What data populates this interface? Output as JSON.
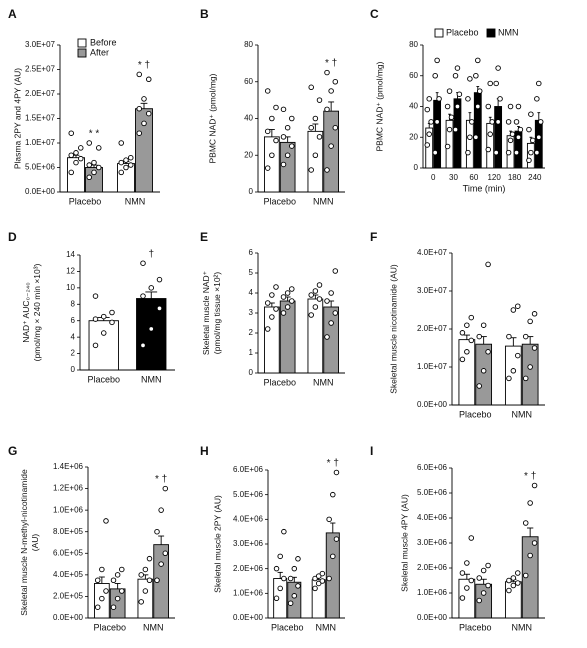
{
  "chart_data": [
    {
      "type": "bar",
      "panel": "A",
      "ylabel": [
        "Plasma 2PY and 4PY (AU)"
      ],
      "categories": [
        "Placebo",
        "NMN"
      ],
      "legend": "top-left",
      "ylim": [
        0,
        30000000
      ],
      "yticks": [
        {
          "value": 0,
          "label": "0.0E+00"
        },
        {
          "value": 5000000,
          "label": "5.0E+06"
        },
        {
          "value": 10000000,
          "label": "1.0E+07"
        },
        {
          "value": 15000000,
          "label": "1.5E+07"
        },
        {
          "value": 20000000,
          "label": "2.0E+07"
        },
        {
          "value": 25000000,
          "label": "2.5E+07"
        },
        {
          "value": 30000000,
          "label": "3.0E+07"
        }
      ],
      "series": [
        {
          "name": "Before",
          "color": "#ffffff",
          "values": [
            7000000,
            5800000
          ],
          "errors": [
            500000,
            400000
          ],
          "points": [
            [
              4000000,
              6000000,
              6800000,
              7500000,
              8000000,
              9000000,
              12000000
            ],
            [
              4000000,
              5000000,
              5500000,
              6000000,
              6500000,
              7000000,
              10000000
            ]
          ]
        },
        {
          "name": "After",
          "color": "#999999",
          "values": [
            5000000,
            17000000
          ],
          "errors": [
            500000,
            1100000
          ],
          "points": [
            [
              3000000,
              4000000,
              5000000,
              5500000,
              6000000,
              9000000,
              10000000
            ],
            [
              12000000,
              14000000,
              16000000,
              17000000,
              19000000,
              23000000,
              24000000
            ]
          ],
          "annotations": [
            "* *",
            "* †"
          ]
        }
      ]
    },
    {
      "type": "bar",
      "panel": "B",
      "ylabel": [
        "PBMC NAD⁺ (pmol/mg)"
      ],
      "categories": [
        "Placebo",
        "NMN"
      ],
      "ylim": [
        0,
        80
      ],
      "yticks": [
        0,
        20,
        40,
        60,
        80
      ],
      "series": [
        {
          "name": "Before",
          "color": "#ffffff",
          "values": [
            30,
            33
          ],
          "errors": [
            4,
            4
          ],
          "points": [
            [
              13,
              20,
              28,
              33,
              40,
              46,
              55
            ],
            [
              12,
              20,
              30,
              35,
              40,
              50,
              57
            ]
          ]
        },
        {
          "name": "After",
          "color": "#999999",
          "values": [
            27,
            44
          ],
          "errors": [
            3,
            5
          ],
          "points": [
            [
              15,
              20,
              25,
              30,
              35,
              40,
              45
            ],
            [
              12,
              25,
              35,
              45,
              55,
              60,
              65
            ]
          ],
          "annotations": [
            null,
            "* †"
          ]
        }
      ]
    },
    {
      "type": "bar",
      "panel": "C",
      "ylabel": [
        "PBMC NAD⁺ (pmol/mg)"
      ],
      "xlabel": "Time (min)",
      "categories": [
        "0",
        "30",
        "60",
        "120",
        "180",
        "240"
      ],
      "legend": "top",
      "ylim": [
        0,
        80
      ],
      "yticks": [
        0,
        20,
        40,
        60,
        80
      ],
      "series": [
        {
          "name": "Placebo",
          "color": "#ffffff",
          "values": [
            26,
            31,
            31,
            29,
            21,
            16
          ],
          "errors": [
            3,
            4,
            5,
            4,
            3,
            4
          ],
          "points": [
            [
              15,
              22,
              30,
              38,
              45
            ],
            [
              14,
              25,
              33,
              40,
              50
            ],
            [
              10,
              20,
              30,
              45,
              58
            ],
            [
              12,
              22,
              30,
              40,
              55
            ],
            [
              10,
              18,
              22,
              30,
              40
            ],
            [
              5,
              10,
              18,
              25,
              35
            ]
          ]
        },
        {
          "name": "NMN",
          "color": "#000000",
          "values": [
            44,
            45,
            49,
            40,
            24,
            31
          ],
          "errors": [
            5,
            4,
            4,
            5,
            3,
            5
          ],
          "points": [
            [
              10,
              30,
              45,
              60,
              70
            ],
            [
              25,
              40,
              48,
              60,
              65
            ],
            [
              20,
              40,
              50,
              60,
              70
            ],
            [
              10,
              30,
              45,
              55,
              65
            ],
            [
              10,
              20,
              25,
              30,
              40
            ],
            [
              10,
              20,
              30,
              45,
              55
            ]
          ]
        }
      ]
    },
    {
      "type": "bar",
      "panel": "D",
      "ylabel": [
        "NAD⁺ AUC₀₋₂₄₀",
        "(pmol/mg × 240 min ×10³)"
      ],
      "categories": [
        "Placebo",
        "NMN"
      ],
      "ylim": [
        0,
        14
      ],
      "yticks": [
        0,
        2,
        4,
        6,
        8,
        10,
        12,
        14
      ],
      "series": [
        {
          "colors": [
            "#ffffff",
            "#000000"
          ],
          "values": [
            6.0,
            8.7
          ],
          "errors": [
            0.4,
            0.8
          ],
          "points": [
            [
              3,
              4.5,
              5.8,
              6.2,
              6.5,
              7,
              9
            ],
            [
              3,
              5,
              7.5,
              9,
              10,
              11,
              13
            ]
          ],
          "annotations": [
            null,
            "†"
          ]
        }
      ]
    },
    {
      "type": "bar",
      "panel": "E",
      "ylabel": [
        "Skeletal muscle NAD⁺",
        "(pmol/mg tissue ×10²)"
      ],
      "categories": [
        "Placebo",
        "NMN"
      ],
      "ylim": [
        0,
        6
      ],
      "yticks": [
        0,
        1,
        2,
        3,
        4,
        5,
        6
      ],
      "series": [
        {
          "name": "Before",
          "color": "#ffffff",
          "values": [
            3.3,
            3.7
          ],
          "errors": [
            0.2,
            0.2
          ],
          "points": [
            [
              2.2,
              2.8,
              3.2,
              3.5,
              3.9,
              4.3
            ],
            [
              2.9,
              3.3,
              3.7,
              3.9,
              4.1,
              4.4
            ]
          ]
        },
        {
          "name": "After",
          "color": "#999999",
          "values": [
            3.6,
            3.3
          ],
          "errors": [
            0.2,
            0.3
          ],
          "points": [
            [
              3.0,
              3.3,
              3.6,
              3.8,
              4.0,
              4.2
            ],
            [
              1.8,
              2.5,
              3.0,
              3.6,
              4.0,
              5.1
            ]
          ]
        }
      ]
    },
    {
      "type": "bar",
      "panel": "F",
      "ylabel": [
        "Skeletal muscle nicotinamide (AU)"
      ],
      "categories": [
        "Placebo",
        "NMN"
      ],
      "ylim": [
        0,
        40000000
      ],
      "yticks": [
        {
          "value": 0,
          "label": "0.0E+00"
        },
        {
          "value": 10000000,
          "label": "1.0E+07"
        },
        {
          "value": 20000000,
          "label": "2.0E+07"
        },
        {
          "value": 30000000,
          "label": "3.0E+07"
        },
        {
          "value": 40000000,
          "label": "4.0E+07"
        }
      ],
      "series": [
        {
          "name": "Before",
          "color": "#ffffff",
          "values": [
            17200000,
            15500000
          ],
          "errors": [
            1200000,
            2200000
          ],
          "points": [
            [
              12000000,
              14000000,
              17000000,
              19000000,
              21000000,
              23000000
            ],
            [
              7000000,
              9000000,
              13000000,
              18000000,
              25000000,
              26000000
            ]
          ]
        },
        {
          "name": "After",
          "color": "#999999",
          "values": [
            16000000,
            16000000
          ],
          "errors": [
            2000000,
            2000000
          ],
          "points": [
            [
              5000000,
              9000000,
              14000000,
              18000000,
              21000000,
              37000000
            ],
            [
              7000000,
              10000000,
              15000000,
              18000000,
              22000000,
              24000000
            ]
          ]
        }
      ]
    },
    {
      "type": "bar",
      "panel": "G",
      "ylabel": [
        "Skeletal muscle N-methyl-nicotinamide",
        "(AU)"
      ],
      "categories": [
        "Placebo",
        "NMN"
      ],
      "ylim": [
        0,
        1400000
      ],
      "yticks": [
        {
          "value": 0,
          "label": "0.0E+00"
        },
        {
          "value": 200000,
          "label": "2.0E+05"
        },
        {
          "value": 400000,
          "label": "4.0E+05"
        },
        {
          "value": 600000,
          "label": "6.0E+05"
        },
        {
          "value": 800000,
          "label": "8.0E+05"
        },
        {
          "value": 1000000,
          "label": "1.0E+06"
        },
        {
          "value": 1200000,
          "label": "1.2E+06"
        },
        {
          "value": 1400000,
          "label": "1.4E+06"
        }
      ],
      "series": [
        {
          "name": "Before",
          "color": "#ffffff",
          "values": [
            320000,
            360000
          ],
          "errors": [
            60000,
            40000
          ],
          "points": [
            [
              100000,
              180000,
              250000,
              350000,
              450000,
              900000
            ],
            [
              150000,
              250000,
              350000,
              400000,
              450000,
              550000
            ]
          ]
        },
        {
          "name": "After",
          "color": "#999999",
          "values": [
            270000,
            680000
          ],
          "errors": [
            50000,
            80000
          ],
          "points": [
            [
              100000,
              180000,
              250000,
              350000,
              400000,
              450000
            ],
            [
              350000,
              500000,
              600000,
              800000,
              1000000,
              1200000
            ]
          ],
          "annotations": [
            null,
            "* †"
          ]
        }
      ]
    },
    {
      "type": "bar",
      "panel": "H",
      "ylabel": [
        "Skeletal muscle 2PY (AU)"
      ],
      "categories": [
        "Placebo",
        "NMN"
      ],
      "ylim": [
        0,
        6000000
      ],
      "yticks": [
        {
          "value": 0,
          "label": "0.0E+00"
        },
        {
          "value": 1000000,
          "label": "1.0E+06"
        },
        {
          "value": 2000000,
          "label": "2.0E+06"
        },
        {
          "value": 3000000,
          "label": "3.0E+06"
        },
        {
          "value": 4000000,
          "label": "4.0E+06"
        },
        {
          "value": 5000000,
          "label": "5.0E+06"
        },
        {
          "value": 6000000,
          "label": "6.0E+06"
        }
      ],
      "series": [
        {
          "name": "Before",
          "color": "#ffffff",
          "values": [
            1600000,
            1550000
          ],
          "errors": [
            250000,
            100000
          ],
          "points": [
            [
              800000,
              1200000,
              1600000,
              2000000,
              2500000,
              3500000
            ],
            [
              1200000,
              1400000,
              1500000,
              1600000,
              1700000,
              1800000
            ]
          ]
        },
        {
          "name": "After",
          "color": "#999999",
          "values": [
            1450000,
            3450000
          ],
          "errors": [
            200000,
            400000
          ],
          "points": [
            [
              600000,
              900000,
              1300000,
              1600000,
              2000000,
              2400000
            ],
            [
              1600000,
              2500000,
              3200000,
              4000000,
              5000000,
              5900000
            ]
          ],
          "annotations": [
            null,
            "* †"
          ]
        }
      ]
    },
    {
      "type": "bar",
      "panel": "I",
      "ylabel": [
        "Skeletal muscle 4PY (AU)"
      ],
      "categories": [
        "Placebo",
        "NMN"
      ],
      "ylim": [
        0,
        6000000
      ],
      "yticks": [
        {
          "value": 0,
          "label": "0.0E+00"
        },
        {
          "value": 1000000,
          "label": "1.0E+06"
        },
        {
          "value": 2000000,
          "label": "2.0E+06"
        },
        {
          "value": 3000000,
          "label": "3.0E+06"
        },
        {
          "value": 4000000,
          "label": "4.0E+06"
        },
        {
          "value": 5000000,
          "label": "5.0E+06"
        },
        {
          "value": 6000000,
          "label": "6.0E+06"
        }
      ],
      "series": [
        {
          "name": "Before",
          "color": "#ffffff",
          "values": [
            1550000,
            1450000
          ],
          "errors": [
            200000,
            100000
          ],
          "points": [
            [
              800000,
              1200000,
              1500000,
              1800000,
              2200000,
              3200000
            ],
            [
              1100000,
              1300000,
              1400000,
              1500000,
              1600000,
              1800000
            ]
          ]
        },
        {
          "name": "After",
          "color": "#999999",
          "values": [
            1350000,
            3250000
          ],
          "errors": [
            200000,
            350000
          ],
          "points": [
            [
              700000,
              1000000,
              1300000,
              1600000,
              1900000,
              2100000
            ],
            [
              1700000,
              2500000,
              3000000,
              3800000,
              4600000,
              5300000
            ]
          ],
          "annotations": [
            null,
            "* †"
          ]
        }
      ]
    }
  ]
}
